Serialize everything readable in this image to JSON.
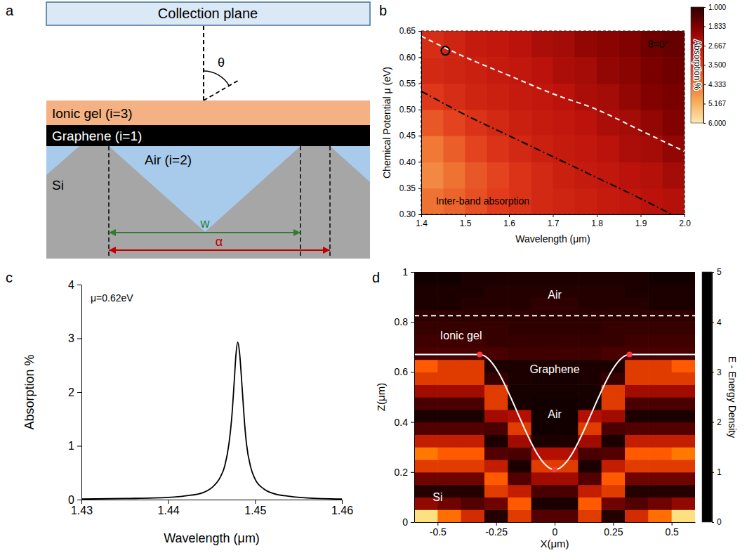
{
  "panel_a": {
    "panel_label": "a",
    "collection_plane": "Collection plane",
    "angle_label": "θ",
    "layers": [
      {
        "label": "Ionic gel (i=3)",
        "color": "#f4b183"
      },
      {
        "label": "Graphene (i=1)",
        "color": "#000000"
      },
      {
        "label": "Air (i=2)",
        "color": "#a9cbeb"
      }
    ],
    "substrate": {
      "label": "Si",
      "color": "#a6a6a6"
    },
    "dimensions": [
      {
        "label": "w",
        "color": "#2e7d32"
      },
      {
        "label": "α",
        "color": "#c00000"
      }
    ]
  },
  "chart_data": [
    {
      "type": "heatmap",
      "panel_label": "b",
      "x_label": "Wavelength (μm)",
      "y_label": "Chemical Potential μ (eV)",
      "xlim": [
        1.4,
        2.0
      ],
      "ylim": [
        0.3,
        0.65
      ],
      "xticks": [
        1.4,
        1.5,
        1.6,
        1.7,
        1.8,
        1.9,
        {
          "value": 2,
          "label": "2.0"
        }
      ],
      "yticks": [
        {
          "value": 0.3,
          "label": "0.30"
        },
        0.35,
        {
          "value": 0.4,
          "label": "0.40"
        },
        0.45,
        {
          "value": 0.5,
          "label": "0.50"
        },
        0.55,
        {
          "value": 0.6,
          "label": "0.60"
        },
        0.65
      ],
      "x_edges": [
        1.4,
        1.45,
        1.5,
        1.55,
        1.6,
        1.65,
        1.7,
        1.75,
        1.8,
        1.85,
        1.9,
        1.95,
        2.0
      ],
      "y_edges": [
        0.3,
        0.35,
        0.4,
        0.45,
        0.5,
        0.55,
        0.6,
        0.65
      ],
      "cells": [
        [
          4.3,
          4.1,
          3.8,
          3.5,
          3.3,
          3.1,
          3.0,
          2.9,
          2.8,
          2.7,
          2.6,
          2.5
        ],
        [
          4.6,
          4.3,
          3.9,
          3.6,
          3.3,
          3.1,
          2.9,
          2.8,
          2.7,
          2.6,
          2.5,
          2.3
        ],
        [
          4.4,
          4.0,
          3.6,
          3.3,
          3.1,
          2.9,
          2.8,
          2.7,
          2.6,
          2.4,
          2.3,
          2.1
        ],
        [
          3.9,
          3.6,
          3.3,
          3.1,
          2.9,
          2.8,
          2.7,
          2.6,
          2.4,
          2.3,
          2.1,
          1.9
        ],
        [
          3.4,
          3.2,
          3.0,
          2.9,
          2.8,
          2.7,
          2.6,
          2.4,
          2.3,
          2.1,
          1.9,
          1.8
        ],
        [
          3.1,
          3.0,
          2.9,
          2.8,
          2.7,
          2.6,
          2.4,
          2.3,
          2.1,
          2.0,
          1.8,
          1.7
        ],
        [
          3.2,
          3.0,
          2.8,
          2.7,
          2.6,
          2.4,
          2.3,
          2.1,
          2.0,
          1.9,
          1.7,
          1.6
        ]
      ],
      "colorbar": {
        "title": "Absorption %",
        "range": [
          1,
          6
        ],
        "ticks": [
          {
            "value": 1,
            "label": "1.000"
          },
          1.833,
          2.667,
          {
            "value": 3.5,
            "label": "3.500"
          },
          4.333,
          5.167,
          {
            "value": 6,
            "label": "6.000"
          }
        ],
        "colors": [
          "#2e0000",
          "#7d0000",
          "#c0150c",
          "#e23c1c",
          "#ef7433",
          "#f7b25e",
          "#fde9b4"
        ]
      },
      "lines": [
        {
          "x": [
            1.4,
            1.5,
            1.6,
            1.7,
            1.8,
            1.9,
            2.0
          ],
          "y": [
            0.64,
            0.6,
            0.565,
            0.53,
            0.5,
            0.46,
            0.42
          ],
          "color": "#ffffff",
          "line_style": "dashed"
        },
        {
          "x": [
            1.4,
            1.5,
            1.6,
            1.7,
            1.8,
            1.9,
            1.97
          ],
          "y": [
            0.535,
            0.49,
            0.45,
            0.41,
            0.37,
            0.33,
            0.3
          ],
          "color": "#000000",
          "line_style": "dashdot"
        }
      ],
      "points": [
        {
          "x": [
            1.455
          ],
          "y": [
            0.612
          ],
          "color": "#000000",
          "marker": "open-circle"
        }
      ],
      "annotations": [
        {
          "text": "θ=0°",
          "x": 1.94,
          "y": 0.625,
          "color": "#000000"
        },
        {
          "text": "Inter-band absorption",
          "x": 1.54,
          "y": 0.325,
          "color": "#000000"
        }
      ]
    },
    {
      "type": "line",
      "panel_label": "c",
      "x_label": "Wavelength (μm)",
      "y_label": "Absorption %",
      "xlim": [
        1.43,
        1.46
      ],
      "ylim": [
        0,
        4
      ],
      "xticks": [
        1.43,
        1.44,
        1.45,
        1.46
      ],
      "yticks": [
        0,
        1,
        2,
        3,
        4
      ],
      "x": [
        1.43,
        1.435,
        1.44,
        1.442,
        1.444,
        1.445,
        1.446,
        1.4465,
        1.447,
        1.4473,
        1.4476,
        1.4478,
        1.448,
        1.4482,
        1.4485,
        1.4488,
        1.449,
        1.4495,
        1.45,
        1.451,
        1.452,
        1.454,
        1.456,
        1.46
      ],
      "series": [
        {
          "color": "#000000",
          "values": [
            0.01,
            0.02,
            0.04,
            0.07,
            0.13,
            0.22,
            0.42,
            0.62,
            1.05,
            1.5,
            2.2,
            2.7,
            2.93,
            2.75,
            2.1,
            1.4,
            1.05,
            0.6,
            0.38,
            0.2,
            0.12,
            0.06,
            0.03,
            0.01
          ]
        }
      ],
      "annotations": [
        {
          "text": "μ=0.62eV",
          "x": 1.4335,
          "y": 3.75,
          "color": "#000000"
        }
      ]
    },
    {
      "type": "heatmap",
      "panel_label": "d",
      "x_label": "X(μm)",
      "y_label": "Z(μm)",
      "xlim": [
        -0.6,
        0.6
      ],
      "ylim": [
        0,
        1
      ],
      "xticks": [
        -0.5,
        -0.25,
        0,
        0.25,
        0.5
      ],
      "yticks": [
        0,
        0.2,
        0.4,
        0.6,
        0.8,
        1
      ],
      "x_edges": [
        -0.6,
        -0.5,
        -0.4,
        -0.3,
        -0.2,
        -0.1,
        0,
        0.1,
        0.2,
        0.3,
        0.4,
        0.5,
        0.6
      ],
      "y_edges": [
        0,
        0.05,
        0.1,
        0.15,
        0.2,
        0.25,
        0.3,
        0.35,
        0.4,
        0.45,
        0.5,
        0.55,
        0.6,
        0.65,
        0.7,
        0.75,
        0.8,
        0.85,
        0.9,
        0.95,
        1
      ],
      "cells": [
        [
          4.5,
          3.2,
          2.4,
          0.4,
          2.6,
          0.9,
          0.9,
          2.6,
          0.4,
          2.4,
          3.2,
          4.5
        ],
        [
          1.6,
          1.2,
          0.9,
          1.2,
          3.0,
          0.3,
          0.3,
          3.0,
          1.2,
          0.9,
          1.2,
          1.6
        ],
        [
          0.4,
          0.4,
          0.4,
          2.6,
          2.2,
          0.8,
          0.8,
          2.2,
          2.6,
          0.4,
          0.4,
          0.4
        ],
        [
          1.2,
          1.2,
          1.2,
          3.0,
          0.9,
          1.8,
          1.8,
          0.9,
          3.0,
          1.2,
          1.2,
          1.2
        ],
        [
          2.6,
          2.6,
          2.6,
          2.2,
          0.3,
          2.6,
          2.6,
          0.3,
          2.2,
          2.6,
          2.6,
          2.6
        ],
        [
          3.3,
          3.0,
          3.0,
          0.9,
          0.8,
          2.0,
          2.0,
          0.8,
          0.9,
          3.0,
          3.0,
          3.3
        ],
        [
          2.2,
          2.2,
          2.2,
          0.3,
          1.8,
          0.3,
          0.3,
          1.8,
          0.3,
          2.2,
          2.2,
          2.2
        ],
        [
          0.9,
          0.9,
          0.9,
          0.8,
          2.6,
          0.2,
          0.2,
          2.6,
          0.8,
          0.9,
          0.9,
          0.9
        ],
        [
          0.3,
          0.3,
          0.3,
          1.8,
          2.0,
          0.2,
          0.2,
          2.0,
          1.8,
          0.3,
          0.3,
          0.3
        ],
        [
          0.8,
          0.8,
          0.8,
          2.6,
          0.25,
          0.2,
          0.2,
          0.25,
          2.6,
          0.8,
          0.8,
          0.8
        ],
        [
          1.8,
          1.8,
          1.8,
          2.6,
          0.25,
          0.25,
          0.25,
          0.25,
          2.6,
          1.8,
          1.8,
          1.8
        ],
        [
          2.6,
          2.6,
          2.6,
          0.6,
          0.3,
          0.25,
          0.25,
          0.3,
          0.6,
          2.6,
          2.6,
          2.6
        ],
        [
          3.0,
          2.6,
          2.6,
          0.3,
          0.3,
          0.3,
          0.3,
          0.3,
          0.3,
          2.6,
          2.6,
          3.0
        ],
        [
          0.8,
          0.8,
          0.8,
          0.8,
          0.7,
          0.7,
          0.7,
          0.7,
          0.8,
          0.8,
          0.8,
          0.8
        ],
        [
          0.7,
          0.7,
          0.7,
          0.6,
          0.6,
          0.6,
          0.6,
          0.6,
          0.6,
          0.7,
          0.7,
          0.7
        ],
        [
          0.6,
          0.6,
          0.6,
          0.6,
          0.5,
          0.5,
          0.5,
          0.5,
          0.6,
          0.6,
          0.6,
          0.6
        ],
        [
          0.5,
          0.5,
          0.5,
          0.5,
          0.5,
          0.5,
          0.5,
          0.5,
          0.5,
          0.5,
          0.5,
          0.5
        ],
        [
          0.3,
          0.3,
          0.4,
          0.4,
          0.4,
          0.5,
          0.5,
          0.4,
          0.4,
          0.4,
          0.3,
          0.3
        ],
        [
          0.3,
          0.3,
          0.3,
          0.4,
          0.4,
          0.4,
          0.4,
          0.4,
          0.4,
          0.3,
          0.3,
          0.3
        ],
        [
          0.2,
          0.2,
          0.3,
          0.3,
          0.3,
          0.3,
          0.3,
          0.3,
          0.3,
          0.3,
          0.2,
          0.2
        ]
      ],
      "colorbar": {
        "title": "E - Energy Density",
        "range": [
          0,
          5
        ],
        "ticks": [
          0,
          1,
          2,
          3,
          4,
          5
        ],
        "colors": [
          "#000000",
          "#5c0000",
          "#b40f00",
          "#ff5a00",
          "#ffc000",
          "#ffffff"
        ]
      },
      "lines": [
        {
          "x": [
            -0.6,
            -0.32,
            0,
            0.32,
            0.6
          ],
          "y": [
            0.67,
            0.67,
            0.21,
            0.67,
            0.67
          ],
          "color": "#ffffff",
          "line_style": "solid"
        },
        {
          "x": [
            -0.6,
            0.6
          ],
          "y": [
            0.825,
            0.825
          ],
          "color": "#ffffff",
          "line_style": "dashed"
        }
      ],
      "points": [
        {
          "x": [
            -0.32,
            0,
            0.32
          ],
          "y": [
            0.67,
            0.21,
            0.67
          ],
          "color": "#ff3b3b",
          "marker": "circle"
        }
      ],
      "annotations": [
        {
          "text": "Air",
          "x": 0,
          "y": 0.91,
          "color": "#ffffff"
        },
        {
          "text": "Ionic gel",
          "x": -0.4,
          "y": 0.745,
          "color": "#ffffff"
        },
        {
          "text": "Graphene",
          "x": 0,
          "y": 0.61,
          "color": "#ffffff"
        },
        {
          "text": "Air",
          "x": 0,
          "y": 0.43,
          "color": "#ffffff"
        },
        {
          "text": "Si",
          "x": -0.5,
          "y": 0.1,
          "color": "#ffffff"
        }
      ]
    }
  ]
}
